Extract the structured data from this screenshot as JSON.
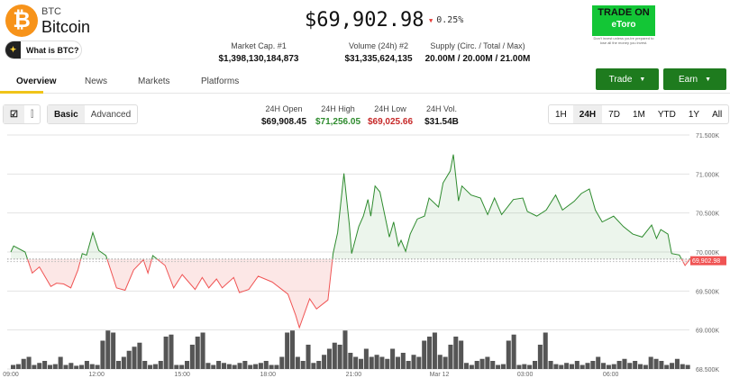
{
  "coin": {
    "symbol": "BTC",
    "name": "Bitcoin",
    "logo_letter": "₿",
    "what_label": "What is BTC?",
    "price": "$69,902.98",
    "change": "0.25%",
    "change_color": "#e53935"
  },
  "stats": [
    {
      "label": "Market Cap. #1",
      "value": "$1,398,130,184,873"
    },
    {
      "label": "Volume (24h) #2",
      "value": "$31,335,624,135"
    },
    {
      "label": "Supply (Circ. / Total / Max)",
      "value": "20.00M / 20.00M / 21.00M"
    }
  ],
  "ad": {
    "line1": "TRADE ON",
    "line2": "eToro",
    "disclaimer": "Don't invest unless you're prepared to lose all the money you invest."
  },
  "tabs": [
    "Overview",
    "News",
    "Markets",
    "Platforms"
  ],
  "actions": {
    "trade": "Trade",
    "earn": "Earn"
  },
  "modes": [
    "Basic",
    "Advanced"
  ],
  "day_stats": [
    {
      "label": "24H Open",
      "value": "$69,908.45",
      "color": "#111"
    },
    {
      "label": "24H High",
      "value": "$71,256.05",
      "color": "#2e8b2e"
    },
    {
      "label": "24H Low",
      "value": "$69,025.66",
      "color": "#c62828"
    },
    {
      "label": "24H Vol.",
      "value": "$31.54B",
      "color": "#111"
    }
  ],
  "ranges": [
    "1H",
    "24H",
    "7D",
    "1M",
    "YTD",
    "1Y",
    "All"
  ],
  "selected_range": "24H",
  "chart_data": {
    "type": "line",
    "open": 69908.45,
    "current_label": "69,902.98",
    "ylim": [
      68500,
      71500
    ],
    "yticks": [
      {
        "v": 71500,
        "l": "71.500K"
      },
      {
        "v": 71000,
        "l": "71.000K"
      },
      {
        "v": 70500,
        "l": "70.500K"
      },
      {
        "v": 70000,
        "l": "70.000K"
      },
      {
        "v": 69500,
        "l": "69.500K"
      },
      {
        "v": 69000,
        "l": "69.000K"
      },
      {
        "v": 68500,
        "l": "68.500K"
      }
    ],
    "xticks": [
      {
        "h": 0,
        "l": "09:00"
      },
      {
        "h": 3,
        "l": "12:00"
      },
      {
        "h": 6,
        "l": "15:00"
      },
      {
        "h": 9,
        "l": "18:00"
      },
      {
        "h": 12,
        "l": "21:00"
      },
      {
        "h": 15,
        "l": "Mar 12"
      },
      {
        "h": 18,
        "l": "03:00"
      },
      {
        "h": 21,
        "l": "06:00"
      }
    ],
    "points": [
      [
        0,
        70000
      ],
      [
        0.1,
        70077
      ],
      [
        0.5,
        70000
      ],
      [
        0.75,
        69730
      ],
      [
        1.0,
        69808
      ],
      [
        1.4,
        69558
      ],
      [
        1.6,
        69600
      ],
      [
        1.85,
        69590
      ],
      [
        2.1,
        69540
      ],
      [
        2.35,
        69770
      ],
      [
        2.5,
        69980
      ],
      [
        2.65,
        69960
      ],
      [
        2.87,
        70250
      ],
      [
        3.08,
        70019
      ],
      [
        3.33,
        69954
      ],
      [
        3.7,
        69540
      ],
      [
        4.0,
        69510
      ],
      [
        4.3,
        69770
      ],
      [
        4.64,
        69900
      ],
      [
        4.8,
        69730
      ],
      [
        4.97,
        69954
      ],
      [
        5.4,
        69827
      ],
      [
        5.7,
        69540
      ],
      [
        6.0,
        69710
      ],
      [
        6.45,
        69520
      ],
      [
        6.7,
        69673
      ],
      [
        6.93,
        69540
      ],
      [
        7.2,
        69654
      ],
      [
        7.4,
        69540
      ],
      [
        7.8,
        69673
      ],
      [
        8.0,
        69480
      ],
      [
        8.33,
        69520
      ],
      [
        8.66,
        69690
      ],
      [
        9.15,
        69615
      ],
      [
        9.7,
        69460
      ],
      [
        9.97,
        69190
      ],
      [
        10.1,
        69030
      ],
      [
        10.46,
        69400
      ],
      [
        10.7,
        69270
      ],
      [
        11.1,
        69385
      ],
      [
        11.28,
        69980
      ],
      [
        11.44,
        70250
      ],
      [
        11.66,
        71008
      ],
      [
        11.85,
        70346
      ],
      [
        11.93,
        69980
      ],
      [
        12.18,
        70327
      ],
      [
        12.34,
        70460
      ],
      [
        12.5,
        70673
      ],
      [
        12.6,
        70460
      ],
      [
        12.75,
        70846
      ],
      [
        12.92,
        70770
      ],
      [
        13.25,
        70192
      ],
      [
        13.4,
        70385
      ],
      [
        13.57,
        70077
      ],
      [
        13.66,
        70150
      ],
      [
        13.82,
        70008
      ],
      [
        13.98,
        70230
      ],
      [
        14.23,
        70423
      ],
      [
        14.48,
        70460
      ],
      [
        14.64,
        70692
      ],
      [
        14.97,
        70577
      ],
      [
        15.13,
        70885
      ],
      [
        15.38,
        71038
      ],
      [
        15.49,
        71250
      ],
      [
        15.67,
        70654
      ],
      [
        15.79,
        70846
      ],
      [
        16.11,
        70730
      ],
      [
        16.44,
        70692
      ],
      [
        16.69,
        70480
      ],
      [
        16.93,
        70692
      ],
      [
        17.18,
        70480
      ],
      [
        17.59,
        70673
      ],
      [
        17.92,
        70692
      ],
      [
        18.08,
        70520
      ],
      [
        18.41,
        70460
      ],
      [
        18.74,
        70538
      ],
      [
        19.07,
        70730
      ],
      [
        19.31,
        70538
      ],
      [
        19.72,
        70650
      ],
      [
        19.97,
        70750
      ],
      [
        20.25,
        70808
      ],
      [
        20.46,
        70538
      ],
      [
        20.7,
        70385
      ],
      [
        21.1,
        70460
      ],
      [
        21.44,
        70327
      ],
      [
        21.77,
        70230
      ],
      [
        22.1,
        70192
      ],
      [
        22.43,
        70346
      ],
      [
        22.6,
        70173
      ],
      [
        22.75,
        70288
      ],
      [
        23.0,
        70230
      ],
      [
        23.13,
        69980
      ],
      [
        23.4,
        69962
      ],
      [
        23.6,
        69827
      ],
      [
        23.8,
        69923
      ]
    ],
    "volume": [
      0.1,
      0.12,
      0.25,
      0.3,
      0.1,
      0.15,
      0.2,
      0.1,
      0.12,
      0.3,
      0.1,
      0.15,
      0.08,
      0.1,
      0.2,
      0.12,
      0.1,
      0.7,
      0.95,
      0.9,
      0.2,
      0.3,
      0.45,
      0.55,
      0.65,
      0.2,
      0.1,
      0.12,
      0.2,
      0.8,
      0.85,
      0.1,
      0.1,
      0.2,
      0.6,
      0.8,
      0.9,
      0.15,
      0.1,
      0.2,
      0.15,
      0.12,
      0.1,
      0.15,
      0.2,
      0.1,
      0.12,
      0.15,
      0.2,
      0.1,
      0.1,
      0.3,
      0.9,
      0.95,
      0.3,
      0.2,
      0.6,
      0.15,
      0.2,
      0.35,
      0.5,
      0.65,
      0.6,
      0.95,
      0.4,
      0.3,
      0.25,
      0.5,
      0.3,
      0.35,
      0.3,
      0.25,
      0.5,
      0.3,
      0.4,
      0.2,
      0.35,
      0.3,
      0.7,
      0.8,
      0.9,
      0.35,
      0.3,
      0.6,
      0.8,
      0.7,
      0.15,
      0.1,
      0.2,
      0.25,
      0.3,
      0.2,
      0.1,
      0.12,
      0.7,
      0.85,
      0.1,
      0.12,
      0.1,
      0.2,
      0.6,
      0.9,
      0.2,
      0.12,
      0.1,
      0.15,
      0.12,
      0.2,
      0.1,
      0.15,
      0.2,
      0.3,
      0.15,
      0.1,
      0.12,
      0.2,
      0.25,
      0.15,
      0.2,
      0.12,
      0.1,
      0.3,
      0.25,
      0.2,
      0.1,
      0.15,
      0.25,
      0.12,
      0.1
    ]
  }
}
